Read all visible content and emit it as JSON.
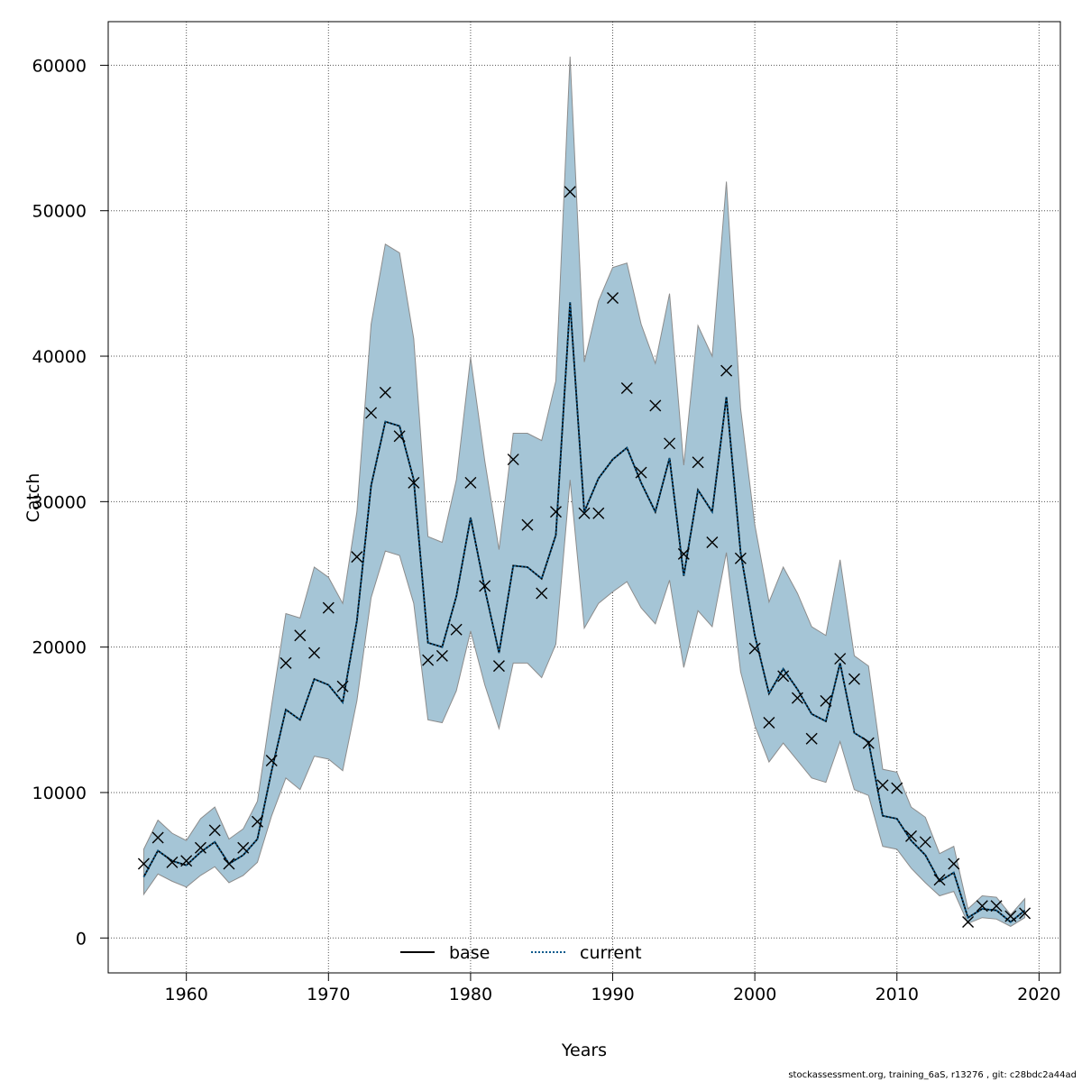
{
  "chart_data": {
    "type": "line",
    "xlabel": "Years",
    "ylabel": "Catch",
    "xlim": [
      1954.5,
      2021.5
    ],
    "ylim": [
      -2400,
      63000
    ],
    "x_ticks": [
      1960,
      1970,
      1980,
      1990,
      2000,
      2010,
      2020
    ],
    "y_ticks": [
      0,
      10000,
      20000,
      30000,
      40000,
      50000,
      60000
    ],
    "x_tick_labels": [
      "1960",
      "1970",
      "1980",
      "1990",
      "2000",
      "2010",
      "2020"
    ],
    "y_tick_labels": [
      "0",
      "10000",
      "20000",
      "30000",
      "40000",
      "50000",
      "60000"
    ],
    "grid": true,
    "legend_position": "bottom-center",
    "colors": {
      "band": "#a5c5d6",
      "band_edge": "#8c8c8c",
      "base": "#000000",
      "current": "#0a5a8c"
    },
    "x": [
      1957,
      1958,
      1959,
      1960,
      1961,
      1962,
      1963,
      1964,
      1965,
      1966,
      1967,
      1968,
      1969,
      1970,
      1971,
      1972,
      1973,
      1974,
      1975,
      1976,
      1977,
      1978,
      1979,
      1980,
      1981,
      1982,
      1983,
      1984,
      1985,
      1986,
      1987,
      1988,
      1989,
      1990,
      1991,
      1992,
      1993,
      1994,
      1995,
      1996,
      1997,
      1998,
      1999,
      2000,
      2001,
      2002,
      2003,
      2004,
      2005,
      2006,
      2007,
      2008,
      2009,
      2010,
      2011,
      2012,
      2013,
      2014,
      2015,
      2016,
      2017,
      2018,
      2019
    ],
    "band_upper": [
      6100,
      8100,
      7200,
      6700,
      8200,
      9000,
      6800,
      7500,
      9400,
      16000,
      22300,
      22000,
      25500,
      24800,
      23000,
      29300,
      42200,
      47700,
      47100,
      41200,
      27600,
      27200,
      31500,
      39900,
      32800,
      26700,
      34700,
      34700,
      34200,
      38300,
      60600,
      39600,
      43800,
      46100,
      46400,
      42200,
      39500,
      44300,
      32500,
      42100,
      40000,
      52000,
      36400,
      28400,
      23100,
      25500,
      23700,
      21400,
      20800,
      26000,
      19400,
      18700,
      11600,
      11400,
      9000,
      8300,
      5800,
      6300,
      2000,
      2900,
      2800,
      1600,
      2700
    ],
    "band_lower": [
      3000,
      4400,
      3900,
      3500,
      4300,
      4900,
      3800,
      4300,
      5200,
      8400,
      11000,
      10200,
      12500,
      12300,
      11500,
      16300,
      23400,
      26600,
      26300,
      23000,
      15000,
      14800,
      17000,
      21100,
      17400,
      14400,
      18900,
      18900,
      17900,
      20200,
      31500,
      21300,
      23000,
      23800,
      24500,
      22700,
      21600,
      24600,
      18600,
      22500,
      21400,
      26500,
      18300,
      14600,
      12100,
      13400,
      12200,
      11000,
      10700,
      13500,
      10200,
      9800,
      6300,
      6100,
      4800,
      3800,
      2900,
      3200,
      1000,
      1400,
      1300,
      800,
      1400
    ],
    "series": [
      {
        "name": "base",
        "values": [
          4200,
          6000,
          5300,
          5000,
          5900,
          6600,
          5100,
          5700,
          6800,
          11500,
          15700,
          15000,
          17800,
          17400,
          16200,
          21800,
          31100,
          35500,
          35200,
          31500,
          20300,
          20000,
          23500,
          28900,
          24000,
          19600,
          25600,
          25500,
          24700,
          27700,
          43700,
          29300,
          31600,
          32900,
          33700,
          31300,
          29300,
          33000,
          24900,
          30800,
          29300,
          37200,
          26500,
          20800,
          16800,
          18500,
          17100,
          15400,
          14900,
          18900,
          14100,
          13500,
          8400,
          8200,
          6700,
          5700,
          3900,
          4500,
          1400,
          2000,
          1900,
          1100,
          1900
        ]
      },
      {
        "name": "current",
        "values": [
          4200,
          6000,
          5300,
          5000,
          5900,
          6600,
          5100,
          5700,
          6800,
          11500,
          15700,
          15000,
          17800,
          17400,
          16200,
          21800,
          31100,
          35500,
          35200,
          31500,
          20300,
          20000,
          23500,
          28900,
          24000,
          19600,
          25600,
          25500,
          24700,
          27700,
          43700,
          29300,
          31600,
          32900,
          33700,
          31300,
          29300,
          33000,
          24900,
          30800,
          29300,
          37200,
          26500,
          20800,
          16800,
          18500,
          17100,
          15400,
          14900,
          18900,
          14100,
          13500,
          8400,
          8200,
          6700,
          5700,
          3900,
          4500,
          1400,
          2000,
          1900,
          1100,
          1900
        ]
      }
    ],
    "observed": [
      5100,
      6900,
      5200,
      5300,
      6200,
      7400,
      5100,
      6200,
      8000,
      12200,
      18900,
      20800,
      19600,
      22700,
      17300,
      26200,
      36100,
      37500,
      34500,
      31300,
      19100,
      19400,
      21200,
      31300,
      24200,
      18700,
      32900,
      28400,
      23700,
      29300,
      51300,
      29200,
      29200,
      44000,
      37800,
      32000,
      36600,
      34000,
      26400,
      32700,
      27200,
      39000,
      26100,
      19900,
      14800,
      18000,
      16500,
      13700,
      16300,
      19200,
      17800,
      13400,
      10500,
      10300,
      7000,
      6600,
      4000,
      5100,
      1100,
      2200,
      2200,
      1500,
      1700
    ]
  },
  "legend": {
    "base_label": "base",
    "current_label": "current"
  },
  "footer": {
    "text": "stockassessment.org, training_6aS, r13276 , git: c28bdc2a44ad"
  }
}
